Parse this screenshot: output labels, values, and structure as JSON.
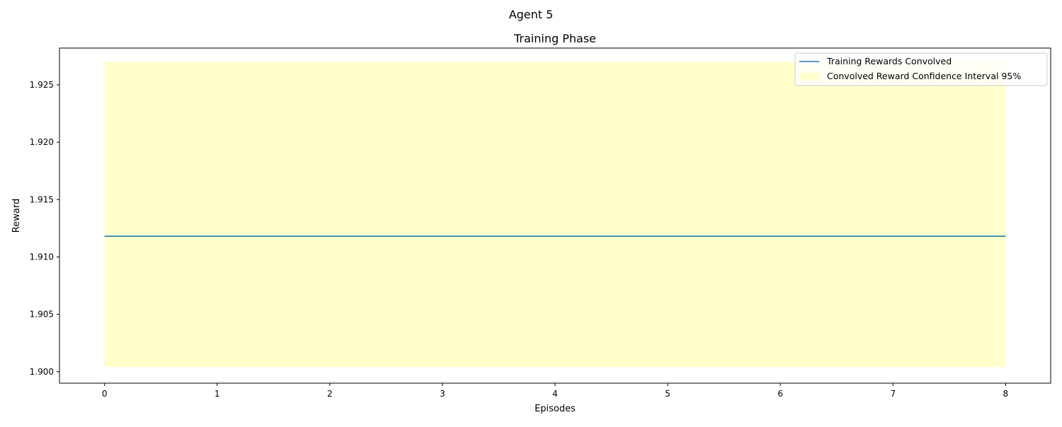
{
  "figure": {
    "suptitle": "Agent 5"
  },
  "chart_data": {
    "type": "line",
    "title": "Training Phase",
    "xlabel": "Episodes",
    "ylabel": "Reward",
    "xlim": [
      -0.4,
      8.4
    ],
    "ylim": [
      1.899,
      1.9282
    ],
    "x_ticks": [
      0,
      1,
      2,
      3,
      4,
      5,
      6,
      7,
      8
    ],
    "y_ticks": [
      1.9,
      1.905,
      1.91,
      1.915,
      1.92,
      1.925
    ],
    "y_tick_labels": [
      "1.900",
      "1.905",
      "1.910",
      "1.915",
      "1.920",
      "1.925"
    ],
    "grid": false,
    "legend_position": "top-right",
    "series": [
      {
        "name": "Training Rewards Convolved",
        "kind": "line",
        "color": "#1f77b4",
        "x": [
          0,
          1,
          2,
          3,
          4,
          5,
          6,
          7,
          8
        ],
        "y": [
          1.9118,
          1.9118,
          1.9118,
          1.9118,
          1.9118,
          1.9118,
          1.9118,
          1.9118,
          1.9118
        ]
      },
      {
        "name": "Convolved Reward Confidence Interval 95%",
        "kind": "band",
        "color": "#ffffcc",
        "x": [
          0,
          8
        ],
        "lower": [
          1.9004,
          1.9004
        ],
        "upper": [
          1.927,
          1.927
        ]
      }
    ]
  }
}
